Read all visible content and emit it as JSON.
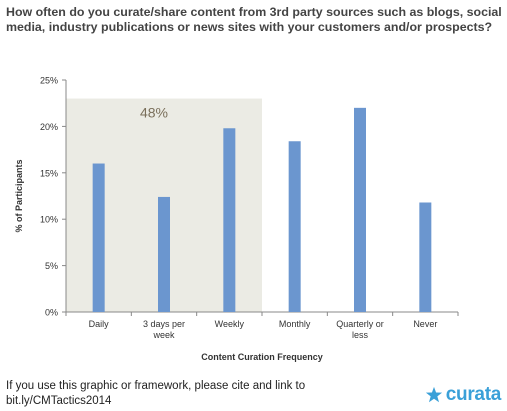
{
  "title": "How often do you curate/share content from 3rd party sources such as blogs, social media, industry publications or news sites with your customers and/or prospects?",
  "footer_note": "If you use this graphic or framework, please cite and link to bit.ly/CMTactics2014",
  "logo_text": "curata",
  "colors": {
    "bar": "#6b96cf",
    "highlight": "#ebebe4",
    "highlight_text": "#7a6f5a",
    "axis": "#888888",
    "logo": "#3aa0d8"
  },
  "chart_data": {
    "type": "bar",
    "categories": [
      "Daily",
      "3 days per week",
      "Weekly",
      "Monthly",
      "Quarterly or less",
      "Never"
    ],
    "category_lines": [
      [
        "Daily"
      ],
      [
        "3 days per",
        "week"
      ],
      [
        "Weekly"
      ],
      [
        "Monthly"
      ],
      [
        "Quarterly or",
        "less"
      ],
      [
        "Never"
      ]
    ],
    "values": [
      16.0,
      12.4,
      19.8,
      18.4,
      22.0,
      11.8
    ],
    "xlabel": "Content Curation Frequency",
    "ylabel": "% of Participants",
    "ylim": [
      0,
      25
    ],
    "yticks": [
      0,
      5,
      10,
      15,
      20,
      25
    ],
    "ytick_labels": [
      "0%",
      "5%",
      "10%",
      "15%",
      "20%",
      "25%"
    ],
    "highlight": {
      "categories": [
        "Daily",
        "3 days per week",
        "Weekly"
      ],
      "label": "48%"
    },
    "grid": false
  }
}
